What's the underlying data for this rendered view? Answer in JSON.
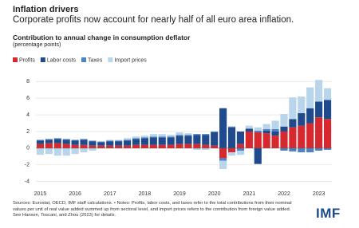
{
  "header": {
    "title": "Inflation drivers",
    "subtitle": "Corporate profits now account for nearly half of all euro area inflation."
  },
  "chart_data": {
    "type": "bar",
    "stacked": true,
    "title": "Contribution to annual change in consumption deflator",
    "subtitle": "(percentage points)",
    "categories": [
      "2015",
      null,
      null,
      null,
      "2016",
      null,
      null,
      null,
      "2017",
      null,
      null,
      null,
      "2018",
      null,
      null,
      null,
      "2019",
      null,
      null,
      null,
      "2020",
      null,
      null,
      null,
      "2021",
      null,
      null,
      null,
      "2022",
      null,
      null,
      null,
      "2023",
      null
    ],
    "series": [
      {
        "name": "Profits",
        "color": "#d7282f",
        "values": [
          0.5,
          0.6,
          0.6,
          0.5,
          0.4,
          0.4,
          0.3,
          0.3,
          0.3,
          0.3,
          0.3,
          0.4,
          0.4,
          0.4,
          0.4,
          0.4,
          0.5,
          0.5,
          0.5,
          0.4,
          0.3,
          -1.2,
          -0.5,
          0.5,
          2.0,
          1.9,
          1.8,
          1.5,
          2.0,
          2.5,
          2.7,
          3.0,
          3.7,
          3.5
        ]
      },
      {
        "name": "Labor costs",
        "color": "#1f4b8e",
        "values": [
          0.4,
          0.4,
          0.5,
          0.5,
          0.5,
          0.6,
          0.5,
          0.4,
          0.5,
          0.5,
          0.6,
          0.7,
          0.8,
          0.9,
          0.9,
          0.9,
          1.0,
          1.0,
          1.1,
          1.2,
          1.6,
          4.8,
          2.5,
          1.5,
          0.3,
          -1.9,
          0.3,
          0.5,
          0.6,
          1.0,
          1.5,
          1.8,
          1.9,
          2.3
        ]
      },
      {
        "name": "Taxes",
        "color": "#4f82c3",
        "values": [
          0.1,
          0.1,
          0.1,
          0.1,
          0.1,
          0.1,
          0.1,
          0.1,
          0.1,
          0.1,
          0.1,
          0.1,
          0.1,
          0.1,
          0.1,
          0.1,
          0.1,
          0.1,
          0.1,
          0.1,
          0.1,
          -0.3,
          0.1,
          -0.3,
          0.1,
          0.2,
          0.2,
          0.3,
          -0.3,
          -0.4,
          -0.5,
          -0.5,
          -0.3,
          -0.2
        ]
      },
      {
        "name": "Import prices",
        "color": "#b9d5ec",
        "values": [
          -0.8,
          -0.7,
          -0.9,
          -0.9,
          -0.7,
          -0.5,
          -0.3,
          0.0,
          0.1,
          0.1,
          0.2,
          0.2,
          0.2,
          0.3,
          0.3,
          0.2,
          0.3,
          0.2,
          -0.2,
          -0.2,
          0.0,
          -1.0,
          -0.4,
          -0.5,
          0.3,
          0.4,
          0.6,
          1.0,
          1.5,
          2.6,
          2.0,
          2.5,
          2.6,
          1.4
        ]
      }
    ],
    "ylim": [
      -4.8,
      8.7
    ],
    "yticks": [
      -4,
      -2,
      0,
      2,
      4,
      6,
      8
    ],
    "grid": true,
    "legend": "top-left",
    "notes": "Sources: Eurostat, OECD, IMF staff calculations. • Notes: Profits, labor costs, and taxes refer to the total contributions from their nominal values per unit of real value added summed up from sectoral level, and import prices refers to the contribution from foreign value added. See Hansen, Toscani, and Zhou (2023) for details.",
    "logo": "IMF"
  }
}
